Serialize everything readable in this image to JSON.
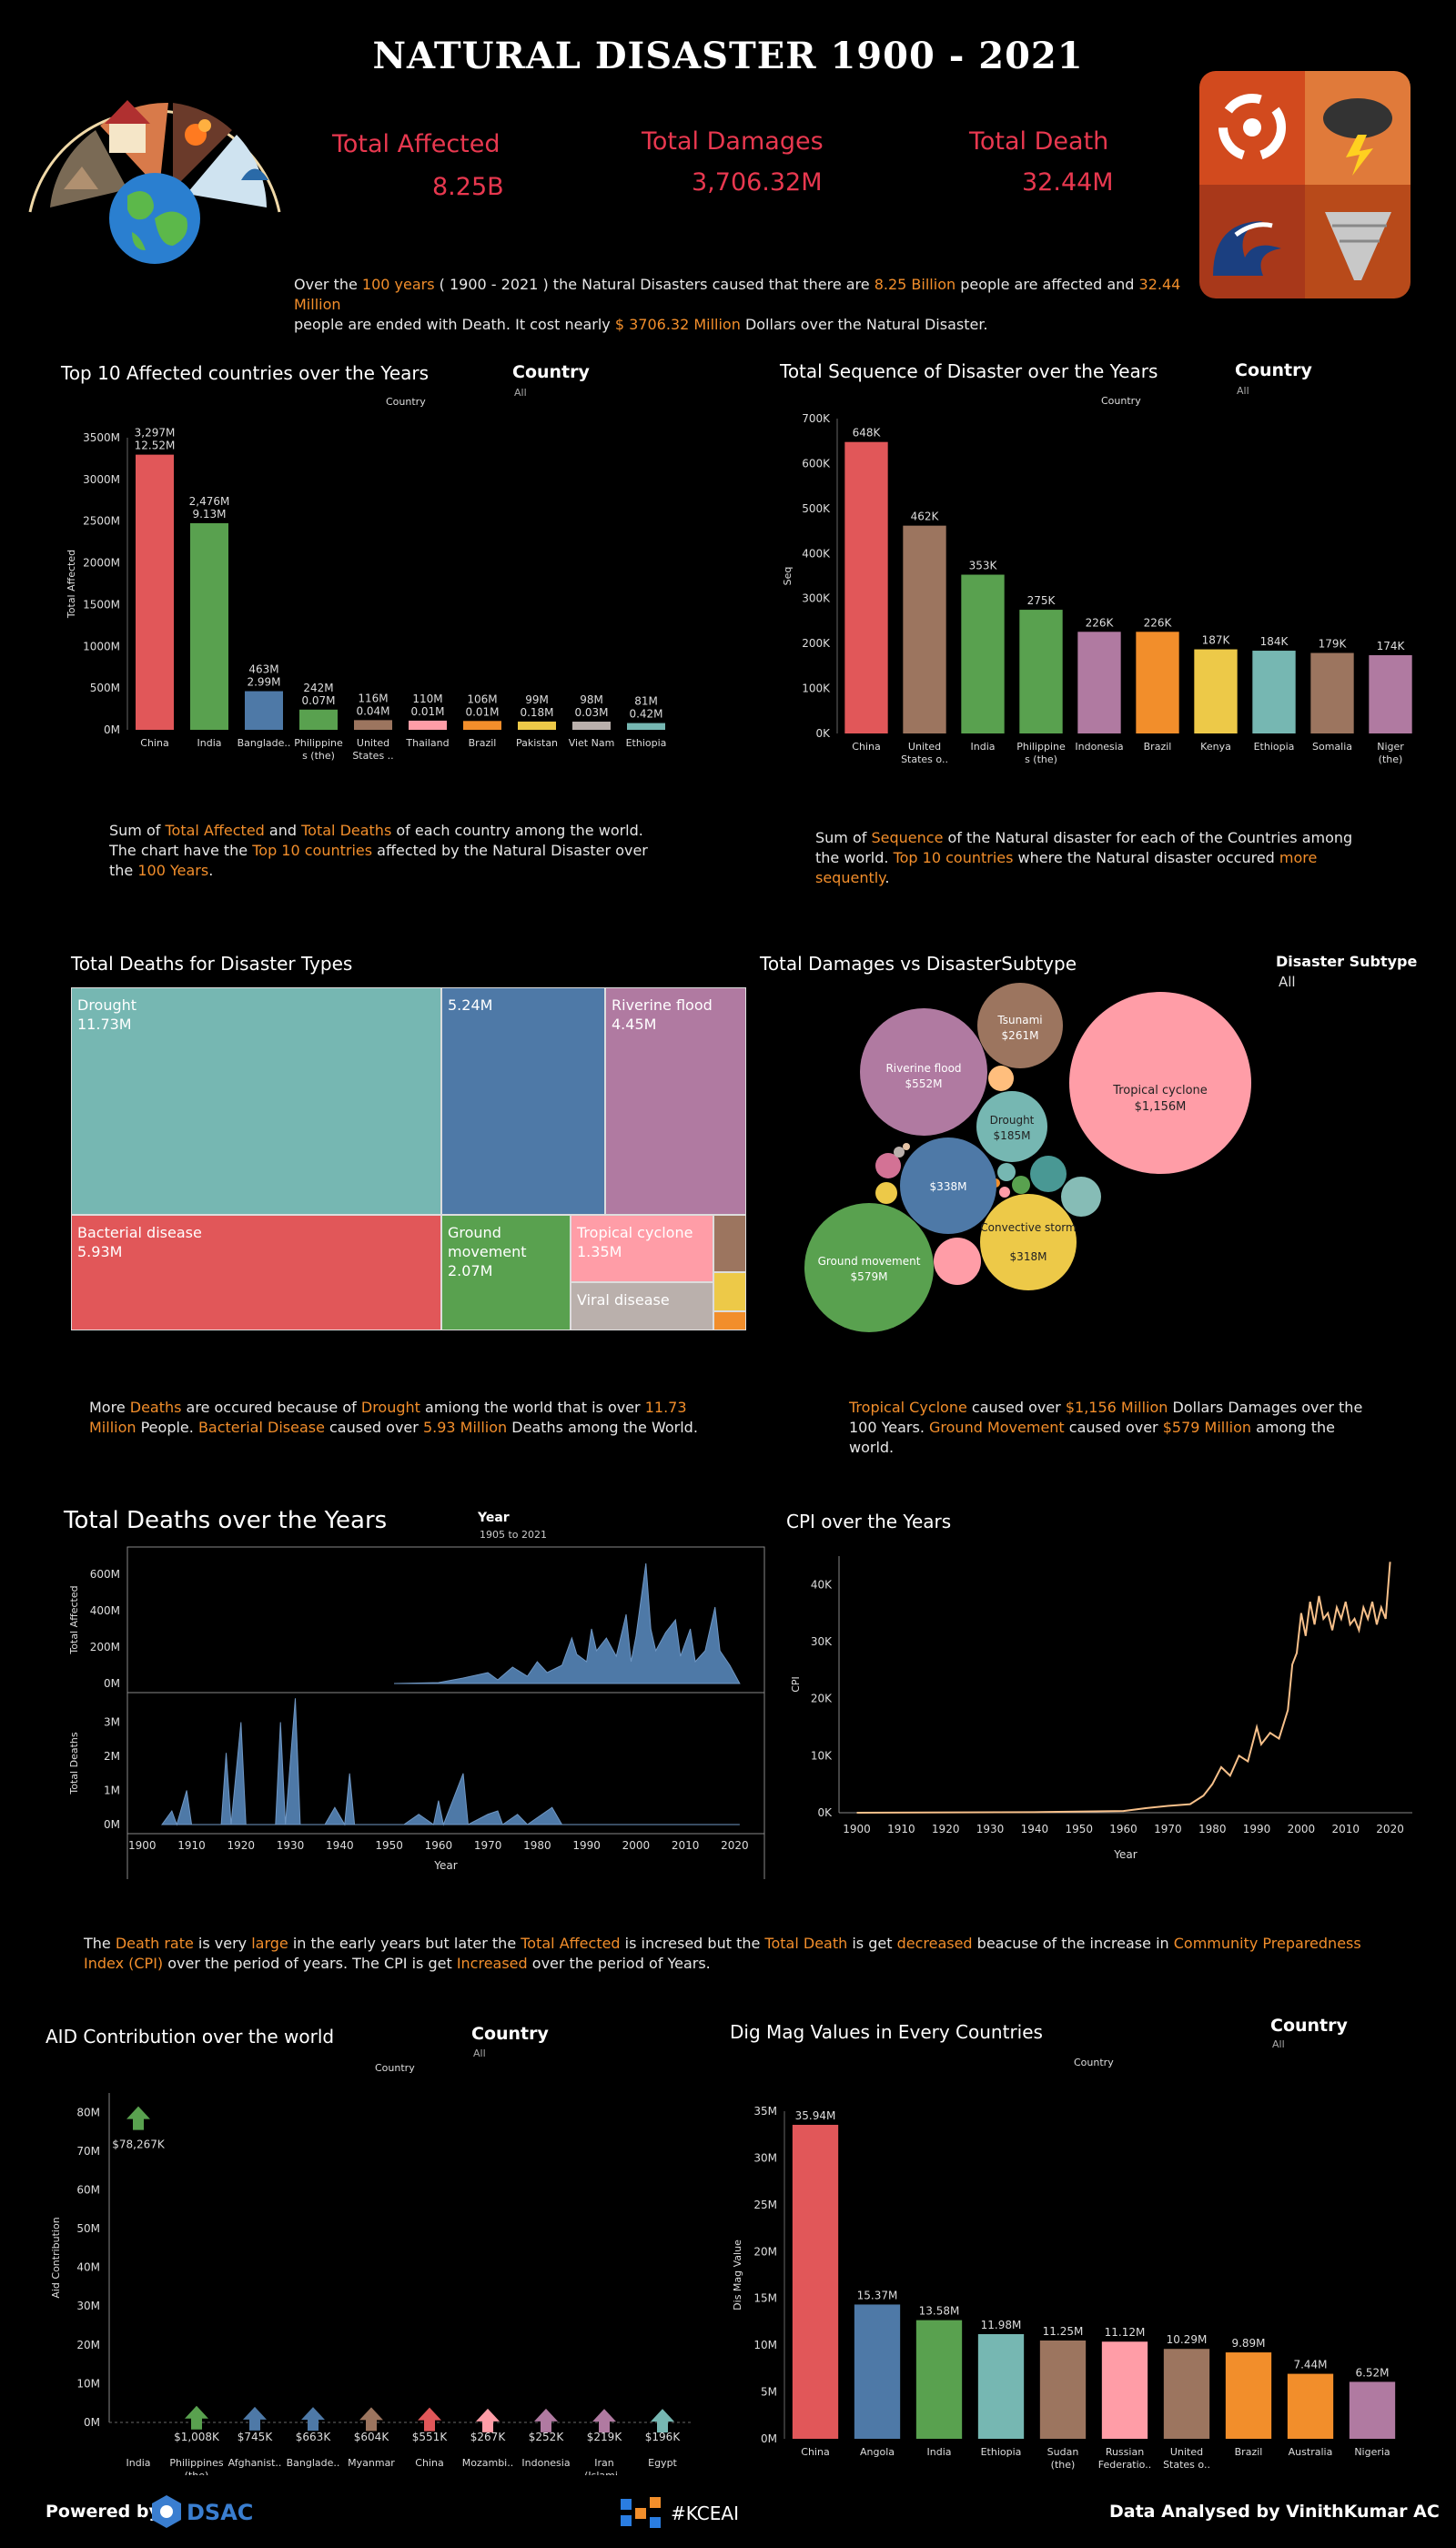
{
  "header": {
    "title": "NATURAL DISASTER 1900 - 2021",
    "kpis": [
      {
        "label": "Total Affected",
        "value": "8.25B"
      },
      {
        "label": "Total Damages",
        "value": "3,706.32M"
      },
      {
        "label": "Total Death",
        "value": "32.44M"
      }
    ],
    "summary": {
      "p1": "Over the ",
      "h1": "100 years",
      "p2": " ( 1900 - 2021 ) the Natural Disasters caused that  there are ",
      "h2": "8.25 Billion",
      "p3": " people are affected and ",
      "h3": "32.44 Million",
      "p4": "people are ended with Death. It cost nearly ",
      "h4": "$ 3706.32 Million",
      "p5": " Dollars over the Natural Disaster."
    }
  },
  "colors": {
    "accent": "#f28e2b",
    "kpi": "#e8384f",
    "area": "#4e79a7",
    "cpi_line": "#f7c08a",
    "palette": [
      "#e15759",
      "#59a14f",
      "#4e79a7",
      "#76b7b2",
      "#9c755f",
      "#ff9da7",
      "#f28e2b",
      "#edc948",
      "#bab0ac",
      "#76b7b2"
    ]
  },
  "icons": [
    "disaster-collage-icon",
    "earth-icon",
    "cyclone-icon",
    "storm-cloud-icon",
    "wave-icon",
    "tornado-icon"
  ],
  "filters": {
    "country_label": "Country",
    "all": "All",
    "year_label": "Year",
    "year_range": "1905 to 2021",
    "subtype_label": "Disaster Subtype",
    "country_axis_label": "Country"
  },
  "chart_data": [
    {
      "id": "top10_affected",
      "type": "bar",
      "title": "Top 10 Affected countries over the Years",
      "xlabel": "",
      "ylabel": "Total Affected",
      "categories": [
        "China",
        "India",
        "Banglade..",
        "Philippine s (the)",
        "United States ..",
        "Thailand",
        "Brazil",
        "Pakistan",
        "Viet Nam",
        "Ethiopia"
      ],
      "values": [
        3297,
        2476,
        463,
        242,
        116,
        110,
        106,
        99,
        98,
        81
      ],
      "labels": [
        "3,297M",
        "2,476M",
        "463M",
        "242M",
        "116M",
        "110M",
        "106M",
        "99M",
        "98M",
        "81M"
      ],
      "sublabels": [
        "12.52M",
        "9.13M",
        "2.99M",
        "0.07M",
        "0.04M",
        "0.01M",
        "0.01M",
        "0.18M",
        "0.03M",
        "0.42M"
      ],
      "ticks": [
        "0M",
        "500M",
        "1000M",
        "1500M",
        "2000M",
        "2500M",
        "3000M",
        "3500M"
      ],
      "ylim": [
        0,
        3500
      ]
    },
    {
      "id": "sequence",
      "type": "bar",
      "title": "Total Sequence of Disaster over the Years",
      "xlabel": "",
      "ylabel": "Seq",
      "categories": [
        "China",
        "United States o..",
        "India",
        "Philippine s (the)",
        "Indonesia",
        "Brazil",
        "Kenya",
        "Ethiopia",
        "Somalia",
        "Niger (the)"
      ],
      "values": [
        648,
        462,
        353,
        275,
        226,
        226,
        187,
        184,
        179,
        174
      ],
      "labels": [
        "648K",
        "462K",
        "353K",
        "275K",
        "226K",
        "226K",
        "187K",
        "184K",
        "179K",
        "174K"
      ],
      "ticks": [
        "0K",
        "100K",
        "200K",
        "300K",
        "400K",
        "500K",
        "600K",
        "700K"
      ],
      "ylim": [
        0,
        700
      ]
    },
    {
      "id": "deaths_treemap",
      "type": "treemap",
      "title": "Total Deaths for Disaster Types",
      "items": [
        {
          "label": "Drought",
          "value": "11.73M"
        },
        {
          "label": "",
          "value": "5.24M"
        },
        {
          "label": "Riverine flood",
          "value": "4.45M"
        },
        {
          "label": "Bacterial disease",
          "value": "5.93M"
        },
        {
          "label": "Ground movement",
          "value": "2.07M"
        },
        {
          "label": "Tropical cyclone",
          "value": "1.35M"
        },
        {
          "label": "Viral disease",
          "value": ""
        }
      ]
    },
    {
      "id": "damages_bubbles",
      "type": "bubble",
      "title": "Total Damages vs DisasterSubtype",
      "items": [
        {
          "label": "Tropical cyclone",
          "value": 1156,
          "text": "$1,156M"
        },
        {
          "label": "Ground movement",
          "value": 579,
          "text": "$579M"
        },
        {
          "label": "Riverine flood",
          "value": 552,
          "text": "$552M"
        },
        {
          "label": "",
          "value": 338,
          "text": "$338M"
        },
        {
          "label": "Convective storm",
          "value": 318,
          "text": "$318M"
        },
        {
          "label": "Tsunami",
          "value": 261,
          "text": "$261M"
        },
        {
          "label": "Drought",
          "value": 185,
          "text": "$185M"
        }
      ]
    },
    {
      "id": "deaths_years",
      "type": "area",
      "title": "Total Deaths over the Years",
      "xlabel": "Year",
      "top": {
        "ylabel": "Total Affected",
        "ticks": [
          "0M",
          "200M",
          "400M",
          "600M"
        ],
        "ylim": [
          0,
          700
        ]
      },
      "bottom": {
        "ylabel": "Total Deaths",
        "ticks": [
          "0M",
          "1M",
          "2M",
          "3M"
        ],
        "ylim": [
          0,
          3.6
        ]
      },
      "xticks": [
        "1900",
        "1910",
        "1920",
        "1930",
        "1940",
        "1950",
        "1960",
        "1970",
        "1980",
        "1990",
        "2000",
        "2010",
        "2020"
      ],
      "xlim": [
        1897,
        2026
      ]
    },
    {
      "id": "cpi",
      "type": "line",
      "title": "CPI over the Years",
      "xlabel": "Year",
      "ylabel": "CPI",
      "xticks": [
        "1900",
        "1910",
        "1920",
        "1930",
        "1940",
        "1950",
        "1960",
        "1970",
        "1980",
        "1990",
        "2000",
        "2010",
        "2020"
      ],
      "yticks": [
        "0K",
        "10K",
        "20K",
        "30K",
        "40K"
      ],
      "xlim": [
        1896,
        2025
      ],
      "ylim": [
        0,
        45000
      ]
    },
    {
      "id": "aid",
      "type": "scatter",
      "title": "AID Contribution over the world",
      "xlabel": "",
      "ylabel": "Aid Contribution",
      "categories": [
        "India",
        "Philippines (the)",
        "Afghanist..",
        "Banglade..",
        "Myanmar",
        "China",
        "Mozambi..",
        "Indonesia",
        "Iran (Islami..",
        "Egypt"
      ],
      "values": [
        78267,
        1008,
        745,
        663,
        604,
        551,
        267,
        252,
        219,
        196
      ],
      "labels": [
        "$78,267K",
        "$1,008K",
        "$745K",
        "$663K",
        "$604K",
        "$551K",
        "$267K",
        "$252K",
        "$219K",
        "$196K"
      ],
      "ticks": [
        "0M",
        "10M",
        "20M",
        "30M",
        "40M",
        "50M",
        "60M",
        "70M",
        "80M"
      ],
      "ylim": [
        0,
        85000
      ]
    },
    {
      "id": "digmag",
      "type": "bar",
      "title": "Dig Mag Values in Every Countries",
      "xlabel": "",
      "ylabel": "Dis Mag Value",
      "categories": [
        "China",
        "Angola",
        "India",
        "Ethiopia",
        "Sudan (the)",
        "Russian Federatio..",
        "United States o..",
        "Brazil",
        "Australia",
        "Nigeria"
      ],
      "values": [
        35.94,
        15.37,
        13.58,
        11.98,
        11.25,
        11.12,
        10.29,
        9.89,
        7.44,
        6.52
      ],
      "labels": [
        "35.94M",
        "15.37M",
        "13.58M",
        "11.98M",
        "11.25M",
        "11.12M",
        "10.29M",
        "9.89M",
        "7.44M",
        "6.52M"
      ],
      "ticks": [
        "0M",
        "5M",
        "10M",
        "15M",
        "20M",
        "25M",
        "30M",
        "35M"
      ],
      "ylim": [
        0,
        37.5
      ]
    }
  ],
  "notes": {
    "affected": {
      "p1": "Sum of ",
      "h1": "Total Affected",
      "p2": " and ",
      "h2": "Total Deaths",
      "p3": " of each country among the world. The chart have the ",
      "h3": "Top 10  countries",
      "p4": " affected by the Natural Disaster over the ",
      "h4": "100 Years",
      "p5": "."
    },
    "sequence": {
      "p1": "Sum of ",
      "h1": "Sequence",
      "p2": " of the Natural disaster for each of the Countries among the world. ",
      "h2": "Top 10 countries",
      "p3": " where the Natural disaster occured ",
      "h3": "more sequently",
      "p4": "."
    },
    "deaths": {
      "p1": "More ",
      "h1": "Deaths",
      "p2": " are occured because of ",
      "h2": "Drought",
      "p3": " amiong the world that is over ",
      "h3": "11.73 Million",
      "p4": " People.  ",
      "h4": "Bacterial Disease",
      "p5": " caused over ",
      "h5": "5.93 Million",
      "p6": " Deaths among the World."
    },
    "damages": {
      "h1": "Tropical Cyclone",
      "p1": " caused over ",
      "h2": "$1,156 Million",
      "p2": " Dollars Damages over the 100 Years.  ",
      "h3": "Ground Movement",
      "p3": " caused over ",
      "h4": "$579 Million",
      "p4": " among the world."
    },
    "cpi": {
      "p1": "The ",
      "h1": "Death rate",
      "p2": " is very ",
      "h2": "large",
      "p3": " in the early years but later the ",
      "h3": "Total Affected",
      "p4": " is incresed but the ",
      "h4": "Total Death",
      "p5": " is get ",
      "h5": "decreased",
      "p6": " beacuse of the increase in ",
      "h6": "Community Preparedness Index (CPI)",
      "p7": " over the period of years. The CPI is get ",
      "h7": "Increased",
      "p8": " over the period of Years."
    }
  },
  "footer": {
    "powered": "Powered by",
    "brand1": "DSAC",
    "brand2": "#KCEAI",
    "credit": "Data Analysed by VinithKumar AC"
  }
}
